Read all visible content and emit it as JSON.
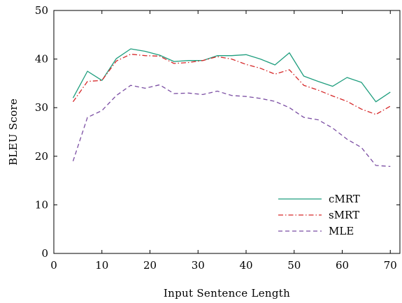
{
  "chart_data": {
    "type": "line",
    "xlabel": "Input Sentence Length",
    "ylabel": "BLEU Score",
    "xlim": [
      0,
      72
    ],
    "ylim": [
      0,
      50
    ],
    "xticks": [
      0,
      10,
      20,
      30,
      40,
      50,
      60,
      70
    ],
    "yticks": [
      0,
      10,
      20,
      30,
      40,
      50
    ],
    "grid": false,
    "legend_position": "bottom-right",
    "series": [
      {
        "name": "cMRT",
        "color": "#1f9e7e",
        "style": "solid",
        "x": [
          4,
          7,
          10,
          13,
          16,
          19,
          22,
          25,
          28,
          31,
          34,
          37,
          40,
          43,
          46,
          49,
          52,
          55,
          58,
          61,
          64,
          67,
          70
        ],
        "y": [
          32.0,
          37.5,
          35.6,
          40.1,
          42.1,
          41.6,
          40.8,
          39.5,
          39.7,
          39.7,
          40.7,
          40.7,
          40.9,
          40.0,
          38.8,
          41.3,
          36.5,
          35.4,
          34.4,
          36.2,
          35.2,
          31.2,
          33.2
        ]
      },
      {
        "name": "sMRT",
        "color": "#d62728",
        "style": "dashdot",
        "x": [
          4,
          7,
          10,
          13,
          16,
          19,
          22,
          25,
          28,
          31,
          34,
          37,
          40,
          43,
          46,
          49,
          52,
          55,
          58,
          61,
          64,
          67,
          70
        ],
        "y": [
          31.2,
          35.4,
          35.6,
          39.6,
          41.0,
          40.7,
          40.6,
          39.1,
          39.3,
          39.7,
          40.5,
          40.0,
          38.9,
          38.1,
          36.9,
          37.8,
          34.6,
          33.6,
          32.4,
          31.3,
          29.7,
          28.6,
          30.3
        ]
      },
      {
        "name": "MLE",
        "color": "#7b4ea3",
        "style": "dashed",
        "x": [
          4,
          7,
          10,
          13,
          16,
          19,
          22,
          25,
          28,
          31,
          34,
          37,
          40,
          43,
          46,
          49,
          52,
          55,
          58,
          61,
          64,
          67,
          70
        ],
        "y": [
          19.0,
          28.0,
          29.4,
          32.5,
          34.6,
          34.0,
          34.7,
          32.9,
          33.0,
          32.7,
          33.4,
          32.5,
          32.3,
          31.9,
          31.3,
          30.0,
          28.0,
          27.5,
          25.8,
          23.5,
          21.8,
          18.1,
          17.9
        ]
      }
    ]
  }
}
